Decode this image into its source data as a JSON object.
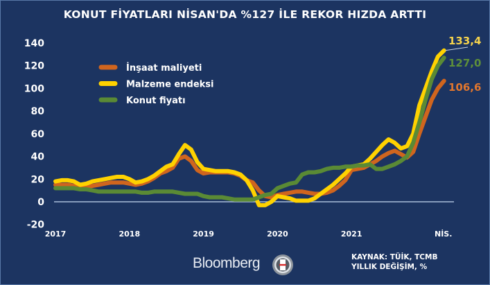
{
  "title": "KONUT FİYATLARI NİSAN'DA %127 İLE REKOR HIZDA ARTTI",
  "source": "KAYNAK: TÜİK, TCMB",
  "unit_note": "YILLIK DEĞİŞİM, %",
  "logo_text": "Bloomberg",
  "logo_badge": "HT",
  "chart_data": {
    "type": "line",
    "title": "KONUT FİYATLARI NİSAN'DA %127 İLE REKOR HIZDA ARTTI",
    "x_range": [
      "2017-01",
      "2022-04"
    ],
    "x_ticks": [
      "2017",
      "2018",
      "2019",
      "2020",
      "2021",
      "NİS."
    ],
    "y_ticks": [
      "140",
      "120",
      "100",
      "80",
      "60",
      "40",
      "20",
      "0",
      "-20"
    ],
    "ylim": [
      -20,
      140
    ],
    "grid": false,
    "legend_position": "top-left",
    "series": [
      {
        "name": "İnşaat maliyeti",
        "color": "#d0651e",
        "end_label": "106,6",
        "values": [
          15,
          15,
          15,
          14,
          13,
          13,
          14,
          15,
          16,
          17,
          17,
          17,
          16,
          15,
          16,
          18,
          21,
          25,
          27,
          30,
          38,
          40,
          36,
          28,
          25,
          26,
          26,
          26,
          26,
          25,
          23,
          19,
          17,
          10,
          5,
          4,
          6,
          7,
          8,
          9,
          9,
          8,
          7,
          7,
          8,
          10,
          14,
          19,
          28,
          29,
          30,
          33,
          36,
          40,
          43,
          45,
          42,
          39,
          44,
          60,
          75,
          90,
          100,
          106.6
        ]
      },
      {
        "name": "Malzeme endeksi",
        "color": "#ffd200",
        "end_label": "133,4",
        "values": [
          18,
          19,
          19,
          18,
          15,
          16,
          18,
          19,
          20,
          21,
          22,
          22,
          20,
          17,
          18,
          20,
          23,
          27,
          31,
          33,
          42,
          50,
          46,
          35,
          29,
          28,
          27,
          27,
          27,
          26,
          24,
          19,
          10,
          -3,
          -3,
          0,
          5,
          4,
          3,
          1,
          1,
          1,
          3,
          7,
          11,
          15,
          20,
          25,
          31,
          32,
          33,
          38,
          44,
          50,
          55,
          52,
          47,
          49,
          60,
          85,
          100,
          115,
          128,
          133.4
        ]
      },
      {
        "name": "Konut fiyatı",
        "color": "#5a8a35",
        "end_label": "127,0",
        "values": [
          12,
          12,
          12,
          12,
          11,
          11,
          10,
          9,
          9,
          9,
          9,
          9,
          9,
          9,
          8,
          8,
          9,
          9,
          9,
          9,
          8,
          7,
          7,
          7,
          5,
          4,
          4,
          4,
          3,
          2,
          2,
          2,
          2,
          4,
          6,
          7,
          12,
          14,
          16,
          17,
          24,
          26,
          26,
          27,
          29,
          30,
          30,
          31,
          31,
          32,
          32,
          33,
          29,
          29,
          31,
          33,
          36,
          40,
          52,
          70,
          90,
          108,
          120,
          127
        ]
      }
    ],
    "label_colors": {
      "İnşaat maliyeti": "#e0762e",
      "Malzeme endeksi": "#f7d44c",
      "Konut fiyatı": "#5e8f3a"
    }
  }
}
